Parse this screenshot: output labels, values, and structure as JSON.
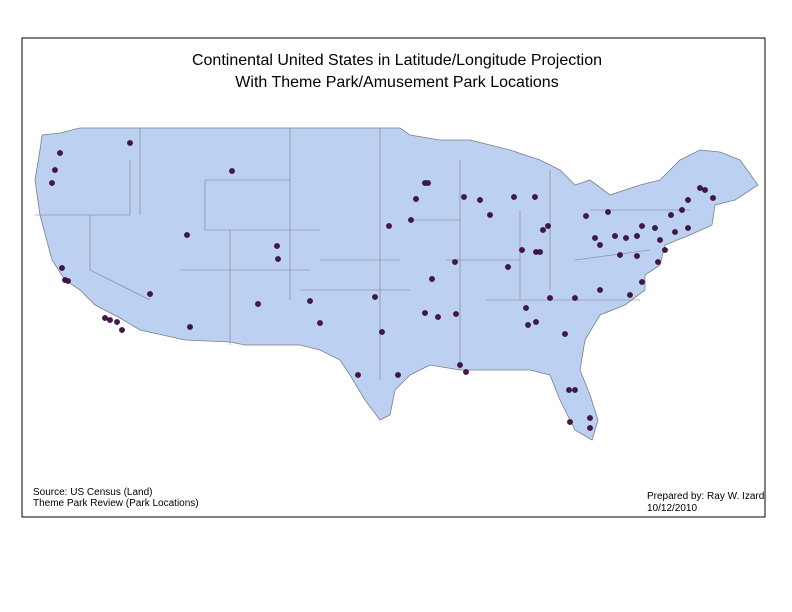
{
  "title": {
    "line1": "Continental United States in Latitude/Longitude Projection",
    "line2": "With Theme Park/Amusement Park Locations"
  },
  "source": {
    "line1": "Source: US Census (Land)",
    "line2": "Theme Park Review (Park Locations)"
  },
  "credit": {
    "line1": "Prepared by: Ray W. Izard",
    "line2": "10/12/2010"
  }
}
